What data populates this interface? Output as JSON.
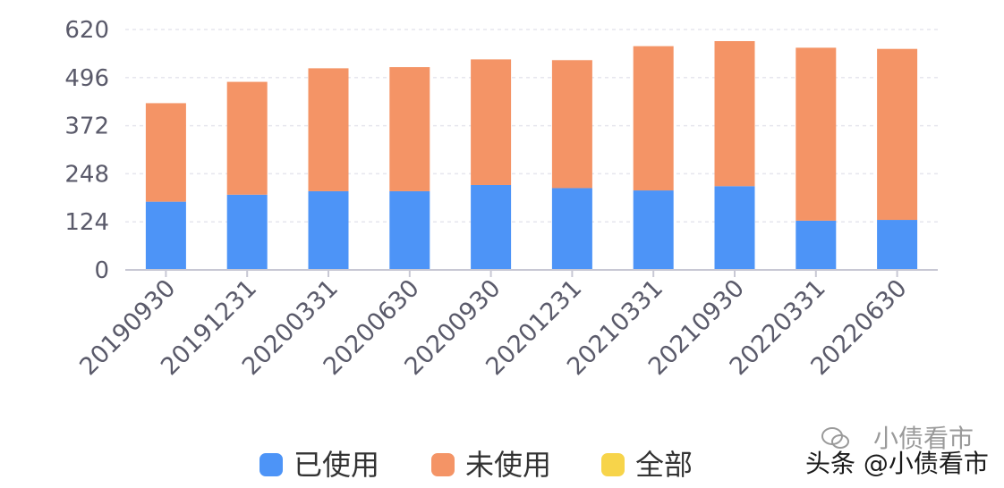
{
  "chart_data": {
    "type": "bar",
    "stacked": true,
    "categories": [
      "20190930",
      "20191231",
      "20200331",
      "20200630",
      "20200930",
      "20201231",
      "20210331",
      "20210930",
      "20220331",
      "20220630"
    ],
    "series": [
      {
        "name": "已使用",
        "color": "#4d94f7",
        "values": [
          176,
          194,
          203,
          203,
          219,
          211,
          205,
          216,
          127,
          129
        ]
      },
      {
        "name": "未使用",
        "color": "#f49466",
        "values": [
          254,
          291,
          317,
          320,
          324,
          330,
          372,
          374,
          446,
          441
        ]
      },
      {
        "name": "全部",
        "color": "#f7d44a",
        "values": [
          0,
          0,
          0,
          0,
          0,
          0,
          0,
          0,
          0,
          0
        ]
      }
    ],
    "yticks": [
      "0",
      "124",
      "248",
      "372",
      "496",
      "620"
    ],
    "ylim": [
      0,
      620
    ],
    "grid": true,
    "legend_position": "bottom-center"
  },
  "watermark": {
    "text": "头条 @小债看市",
    "faint_text": "小债看市",
    "icon": "wechat-icon"
  }
}
